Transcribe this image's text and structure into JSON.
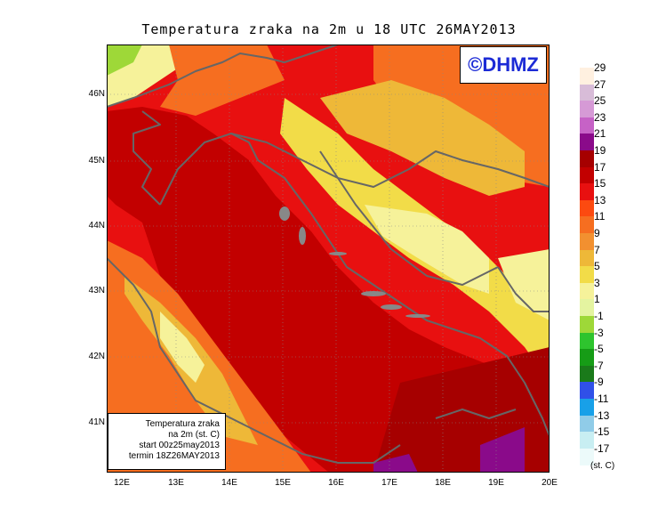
{
  "title": "Temperatura zraka na 2m u 18 UTC 26MAY2013",
  "logo": "©DHMZ",
  "y_ticks": [
    "46N",
    "45N",
    "44N",
    "43N",
    "42N",
    "41N"
  ],
  "x_ticks": [
    "12E",
    "13E",
    "14E",
    "15E",
    "16E",
    "17E",
    "18E",
    "19E",
    "20E"
  ],
  "info": {
    "line1": "Temperatura zraka",
    "line2": "na 2m (st. C)",
    "line3": "start 00z25may2013",
    "line4": "termin 18Z26MAY2013"
  },
  "legend": {
    "labels": [
      "29",
      "27",
      "25",
      "23",
      "21",
      "19",
      "17",
      "15",
      "13",
      "11",
      "9",
      "7",
      "5",
      "3",
      "1",
      "-1",
      "-3",
      "-5",
      "-7",
      "-9",
      "-11",
      "-13",
      "-15",
      "-17"
    ],
    "colors": [
      "#fff0e0",
      "#d8bcd8",
      "#d69ad6",
      "#c662c6",
      "#8a0a8a",
      "#a60000",
      "#c20000",
      "#e81010",
      "#fc4a10",
      "#f66e20",
      "#f29030",
      "#eeb838",
      "#f2dc48",
      "#f6f29a",
      "#e4f4a0",
      "#9ed838",
      "#2ec42e",
      "#169c16",
      "#1a7a1a",
      "#3050e8",
      "#18a0e8",
      "#90cce8",
      "#c8eef2",
      "#ecfafa"
    ],
    "unit": "(st. C)"
  }
}
